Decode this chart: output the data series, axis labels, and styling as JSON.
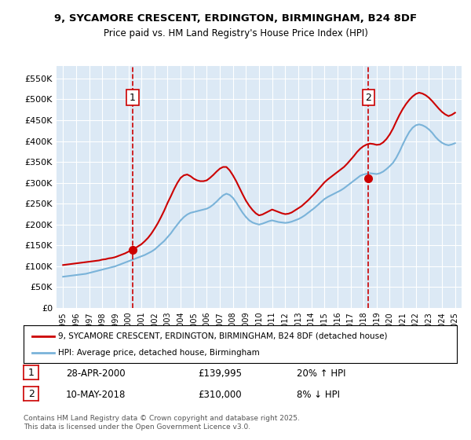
{
  "title_line1": "9, SYCAMORE CRESCENT, ERDINGTON, BIRMINGHAM, B24 8DF",
  "title_line2": "Price paid vs. HM Land Registry's House Price Index (HPI)",
  "ylabel": "",
  "background_color": "#ffffff",
  "plot_bg_color": "#dce9f5",
  "grid_color": "#ffffff",
  "red_color": "#cc0000",
  "blue_color": "#7ab3d9",
  "transaction1": {
    "date": "28-APR-2000",
    "price": 139995,
    "hpi_change": "20% ↑ HPI",
    "year_x": 2000.33
  },
  "transaction2": {
    "date": "10-MAY-2018",
    "price": 310000,
    "hpi_change": "8% ↓ HPI",
    "year_x": 2018.37
  },
  "legend_label_red": "9, SYCAMORE CRESCENT, ERDINGTON, BIRMINGHAM, B24 8DF (detached house)",
  "legend_label_blue": "HPI: Average price, detached house, Birmingham",
  "footer": "Contains HM Land Registry data © Crown copyright and database right 2025.\nThis data is licensed under the Open Government Licence v3.0.",
  "yticks": [
    0,
    50000,
    100000,
    150000,
    200000,
    250000,
    300000,
    350000,
    400000,
    450000,
    500000,
    550000
  ],
  "ytick_labels": [
    "£0",
    "£50K",
    "£100K",
    "£150K",
    "£200K",
    "£250K",
    "£300K",
    "£350K",
    "£400K",
    "£450K",
    "£500K",
    "£550K"
  ],
  "ylim": [
    0,
    580000
  ],
  "xlim_start": 1994.5,
  "xlim_end": 2025.5,
  "hpi_years": [
    1995,
    1995.25,
    1995.5,
    1995.75,
    1996,
    1996.25,
    1996.5,
    1996.75,
    1997,
    1997.25,
    1997.5,
    1997.75,
    1998,
    1998.25,
    1998.5,
    1998.75,
    1999,
    1999.25,
    1999.5,
    1999.75,
    2000,
    2000.25,
    2000.5,
    2000.75,
    2001,
    2001.25,
    2001.5,
    2001.75,
    2002,
    2002.25,
    2002.5,
    2002.75,
    2003,
    2003.25,
    2003.5,
    2003.75,
    2004,
    2004.25,
    2004.5,
    2004.75,
    2005,
    2005.25,
    2005.5,
    2005.75,
    2006,
    2006.25,
    2006.5,
    2006.75,
    2007,
    2007.25,
    2007.5,
    2007.75,
    2008,
    2008.25,
    2008.5,
    2008.75,
    2009,
    2009.25,
    2009.5,
    2009.75,
    2010,
    2010.25,
    2010.5,
    2010.75,
    2011,
    2011.25,
    2011.5,
    2011.75,
    2012,
    2012.25,
    2012.5,
    2012.75,
    2013,
    2013.25,
    2013.5,
    2013.75,
    2014,
    2014.25,
    2014.5,
    2014.75,
    2015,
    2015.25,
    2015.5,
    2015.75,
    2016,
    2016.25,
    2016.5,
    2016.75,
    2017,
    2017.25,
    2017.5,
    2017.75,
    2018,
    2018.25,
    2018.5,
    2018.75,
    2019,
    2019.25,
    2019.5,
    2019.75,
    2020,
    2020.25,
    2020.5,
    2020.75,
    2021,
    2021.25,
    2021.5,
    2021.75,
    2022,
    2022.25,
    2022.5,
    2022.75,
    2023,
    2023.25,
    2023.5,
    2023.75,
    2024,
    2024.25,
    2024.5,
    2024.75,
    2025
  ],
  "hpi_values": [
    75000,
    76000,
    77000,
    78000,
    79000,
    80000,
    81000,
    82000,
    84000,
    86000,
    88000,
    90000,
    92000,
    94000,
    96000,
    98000,
    100000,
    103000,
    106000,
    109000,
    112000,
    115000,
    118000,
    121000,
    124000,
    127000,
    131000,
    135000,
    140000,
    147000,
    154000,
    161000,
    170000,
    179000,
    190000,
    200000,
    210000,
    218000,
    224000,
    228000,
    230000,
    232000,
    234000,
    236000,
    238000,
    242000,
    248000,
    255000,
    263000,
    270000,
    274000,
    271000,
    264000,
    253000,
    240000,
    228000,
    218000,
    210000,
    205000,
    202000,
    200000,
    202000,
    205000,
    208000,
    210000,
    208000,
    206000,
    205000,
    204000,
    205000,
    207000,
    210000,
    213000,
    217000,
    222000,
    228000,
    234000,
    240000,
    247000,
    254000,
    261000,
    266000,
    270000,
    274000,
    278000,
    282000,
    287000,
    293000,
    299000,
    305000,
    311000,
    317000,
    320000,
    322000,
    323000,
    322000,
    321000,
    323000,
    327000,
    333000,
    340000,
    348000,
    360000,
    375000,
    392000,
    408000,
    422000,
    432000,
    438000,
    440000,
    438000,
    434000,
    428000,
    420000,
    410000,
    402000,
    396000,
    392000,
    390000,
    392000,
    395000
  ],
  "red_years": [
    1995,
    1995.25,
    1995.5,
    1995.75,
    1996,
    1996.25,
    1996.5,
    1996.75,
    1997,
    1997.25,
    1997.5,
    1997.75,
    1998,
    1998.25,
    1998.5,
    1998.75,
    1999,
    1999.25,
    1999.5,
    1999.75,
    2000,
    2000.25,
    2000.5,
    2000.75,
    2001,
    2001.25,
    2001.5,
    2001.75,
    2002,
    2002.25,
    2002.5,
    2002.75,
    2003,
    2003.25,
    2003.5,
    2003.75,
    2004,
    2004.25,
    2004.5,
    2004.75,
    2005,
    2005.25,
    2005.5,
    2005.75,
    2006,
    2006.25,
    2006.5,
    2006.75,
    2007,
    2007.25,
    2007.5,
    2007.75,
    2008,
    2008.25,
    2008.5,
    2008.75,
    2009,
    2009.25,
    2009.5,
    2009.75,
    2010,
    2010.25,
    2010.5,
    2010.75,
    2011,
    2011.25,
    2011.5,
    2011.75,
    2012,
    2012.25,
    2012.5,
    2012.75,
    2013,
    2013.25,
    2013.5,
    2013.75,
    2014,
    2014.25,
    2014.5,
    2014.75,
    2015,
    2015.25,
    2015.5,
    2015.75,
    2016,
    2016.25,
    2016.5,
    2016.75,
    2017,
    2017.25,
    2017.5,
    2017.75,
    2018,
    2018.25,
    2018.5,
    2018.75,
    2019,
    2019.25,
    2019.5,
    2019.75,
    2020,
    2020.25,
    2020.5,
    2020.75,
    2021,
    2021.25,
    2021.5,
    2021.75,
    2022,
    2022.25,
    2022.5,
    2022.75,
    2023,
    2023.25,
    2023.5,
    2023.75,
    2024,
    2024.25,
    2024.5,
    2024.75,
    2025
  ],
  "red_values": [
    103000,
    104000,
    105000,
    106000,
    107000,
    108000,
    109000,
    110000,
    111000,
    112000,
    113000,
    114000,
    116000,
    117000,
    119000,
    120000,
    122000,
    125000,
    128000,
    131000,
    135000,
    139000,
    143000,
    148000,
    153000,
    160000,
    168000,
    178000,
    190000,
    203000,
    218000,
    234000,
    252000,
    268000,
    285000,
    300000,
    312000,
    318000,
    320000,
    316000,
    310000,
    306000,
    304000,
    304000,
    306000,
    312000,
    319000,
    327000,
    334000,
    338000,
    338000,
    330000,
    318000,
    304000,
    288000,
    272000,
    257000,
    245000,
    235000,
    227000,
    222000,
    224000,
    228000,
    232000,
    236000,
    233000,
    230000,
    227000,
    225000,
    226000,
    229000,
    234000,
    239000,
    244000,
    251000,
    258000,
    266000,
    274000,
    283000,
    292000,
    301000,
    308000,
    314000,
    320000,
    326000,
    332000,
    338000,
    346000,
    355000,
    364000,
    374000,
    382000,
    388000,
    392000,
    394000,
    393000,
    391000,
    392000,
    397000,
    405000,
    416000,
    430000,
    447000,
    463000,
    477000,
    489000,
    499000,
    507000,
    513000,
    516000,
    514000,
    510000,
    504000,
    496000,
    487000,
    478000,
    470000,
    464000,
    460000,
    463000,
    468000
  ]
}
